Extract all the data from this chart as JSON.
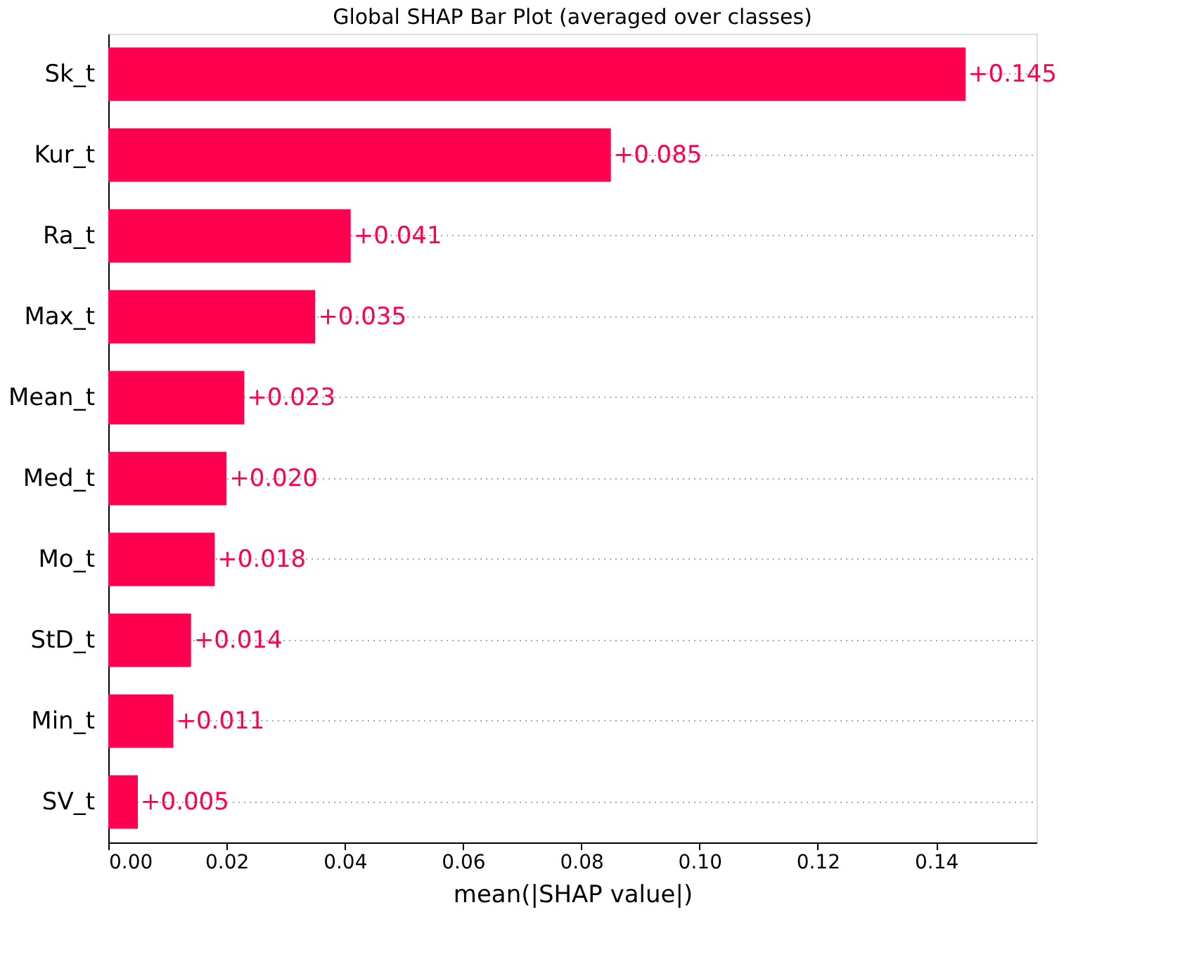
{
  "chart_data": {
    "type": "bar",
    "orientation": "horizontal",
    "title": "Global SHAP Bar Plot (averaged over classes)",
    "xlabel": "mean(|SHAP value|)",
    "categories": [
      "Sk_t",
      "Kur_t",
      "Ra_t",
      "Max_t",
      "Mean_t",
      "Med_t",
      "Mo_t",
      "StD_t",
      "Min_t",
      "SV_t"
    ],
    "values": [
      0.145,
      0.085,
      0.041,
      0.035,
      0.023,
      0.02,
      0.018,
      0.014,
      0.011,
      0.005
    ],
    "value_labels": [
      "+0.145",
      "+0.085",
      "+0.041",
      "+0.035",
      "+0.023",
      "+0.020",
      "+0.018",
      "+0.014",
      "+0.011",
      "+0.005"
    ],
    "color": "#ff0051",
    "xlim": [
      0,
      0.157
    ],
    "xticks": [
      {
        "value": 0,
        "label": "0.00"
      },
      {
        "value": 0.02,
        "label": "0.02"
      },
      {
        "value": 0.04,
        "label": "0.04"
      },
      {
        "value": 0.06,
        "label": "0.06"
      },
      {
        "value": 0.08,
        "label": "0.08"
      },
      {
        "value": 0.1,
        "label": "0.10"
      },
      {
        "value": 0.12,
        "label": "0.12"
      },
      {
        "value": 0.14,
        "label": "0.14"
      }
    ],
    "grid": "y"
  }
}
